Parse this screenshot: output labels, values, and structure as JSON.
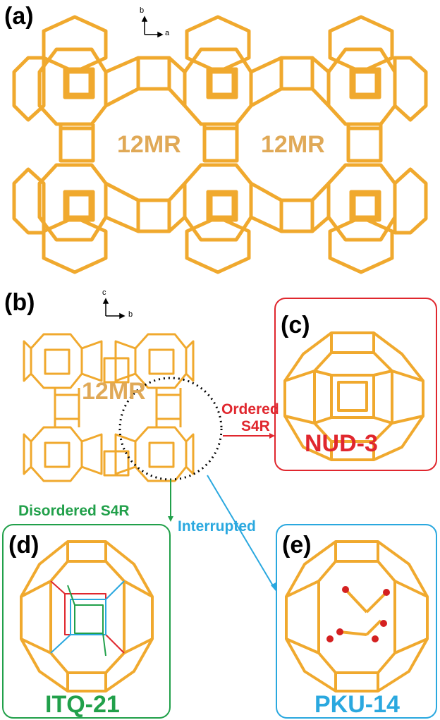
{
  "panels": {
    "a": {
      "letter": "(a)",
      "pore_labels": [
        "12MR",
        "12MR"
      ],
      "axes": {
        "up": "b",
        "right": "a"
      }
    },
    "b": {
      "letter": "(b)",
      "pore_label": "12MR",
      "axes": {
        "up": "c",
        "right": "b"
      }
    },
    "c": {
      "letter": "(c)",
      "name": "NUD-3"
    },
    "d": {
      "letter": "(d)",
      "name": "ITQ-21"
    },
    "e": {
      "letter": "(e)",
      "name": "PKU-14"
    }
  },
  "arrows": {
    "ordered": {
      "line1": "Ordered",
      "line2": "S4R"
    },
    "disordered": {
      "text": "Disordered S4R"
    },
    "interrupted": {
      "text": "Interrupted"
    }
  },
  "colors": {
    "framework": "#F0A92E",
    "ordered": "#E0272E",
    "disordered": "#21A04A",
    "interrupted": "#2AA8DF",
    "pore_text": "#E0A957",
    "oxygen": "#D42020"
  }
}
